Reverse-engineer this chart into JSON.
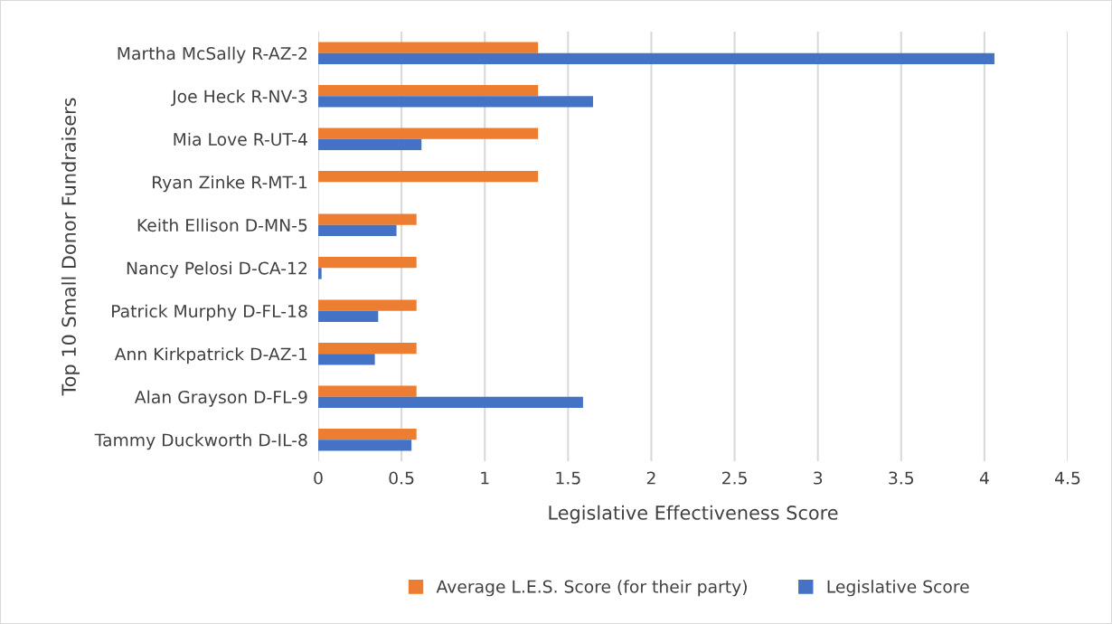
{
  "chart_data": {
    "type": "bar",
    "orientation": "horizontal",
    "xlabel": "Legislative Effectiveness Score",
    "ylabel": "Top 10 Small Donor Fundraisers",
    "categories": [
      "Martha McSally R-AZ-2",
      "Joe Heck R-NV-3",
      "Mia Love R-UT-4",
      "Ryan Zinke R-MT-1",
      "Keith Ellison D-MN-5",
      "Nancy Pelosi D-CA-12",
      "Patrick Murphy D-FL-18",
      "Ann Kirkpatrick D-AZ-1",
      "Alan Grayson D-FL-9",
      "Tammy Duckworth D-IL-8"
    ],
    "series": [
      {
        "name": "Average L.E.S. Score (for their party)",
        "color": "#ed7d31",
        "values": [
          1.32,
          1.32,
          1.32,
          1.32,
          0.59,
          0.59,
          0.59,
          0.59,
          0.59,
          0.59
        ]
      },
      {
        "name": "Legislative Score",
        "color": "#4472c4",
        "values": [
          4.06,
          1.65,
          0.62,
          null,
          0.47,
          0.02,
          0.36,
          0.34,
          1.59,
          0.56
        ]
      }
    ],
    "xlim": [
      0,
      4.5
    ],
    "xticks": [
      0,
      0.5,
      1,
      1.5,
      2,
      2.5,
      3,
      3.5,
      4,
      4.5
    ],
    "grid": "x",
    "legend": "bottom"
  }
}
